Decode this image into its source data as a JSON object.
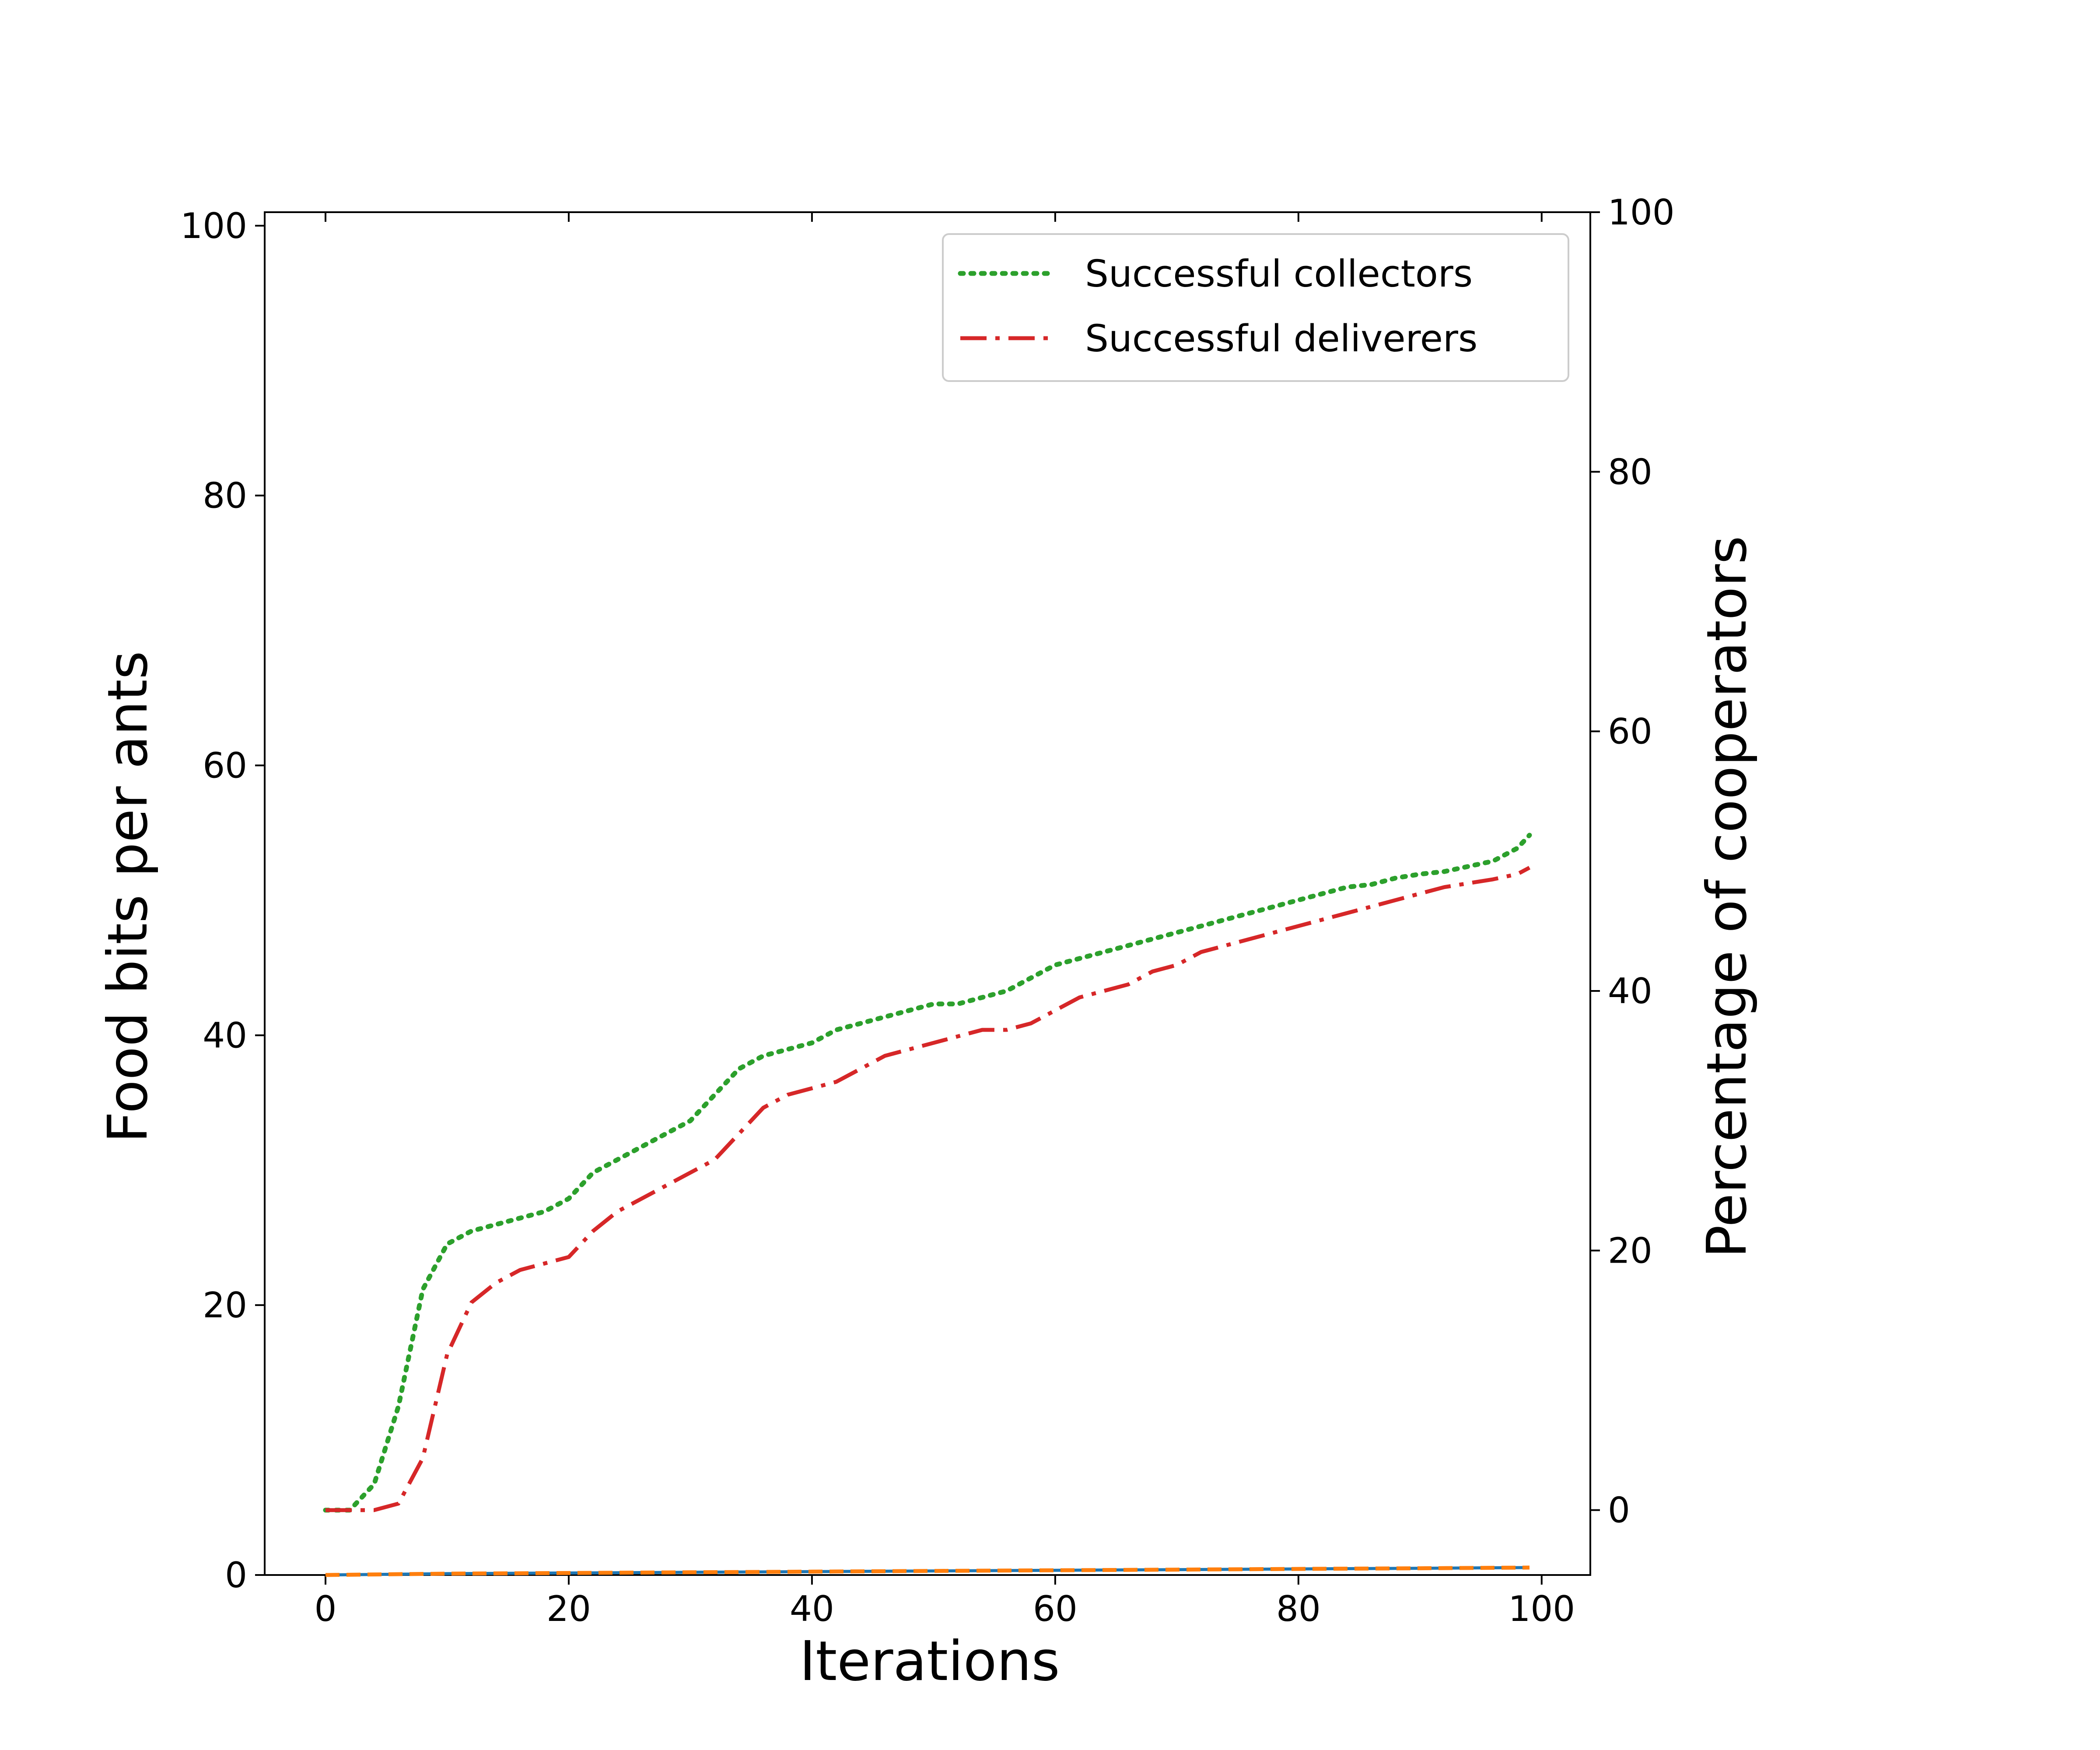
{
  "chart_data": {
    "type": "line",
    "xlabel": "Iterations",
    "ylabel": "Food bits per ants",
    "y2label": "Percentage of cooperators",
    "xlim": [
      -5,
      104
    ],
    "ylim": [
      0,
      101
    ],
    "y2lim": [
      -5,
      100
    ],
    "xticks": [
      0,
      20,
      40,
      60,
      80,
      100
    ],
    "yticks": [
      0,
      20,
      40,
      60,
      80,
      100
    ],
    "y2ticks": [
      0,
      20,
      40,
      60,
      80,
      100
    ],
    "grid": false,
    "legend_position": "top-right",
    "series": [
      {
        "name": "Successful collectors",
        "axis": "right",
        "style": "dotted",
        "color": "#2ca02c",
        "x": [
          0,
          2,
          4,
          6,
          8,
          10,
          12,
          14,
          16,
          18,
          20,
          22,
          24,
          26,
          28,
          30,
          32,
          34,
          36,
          38,
          40,
          42,
          44,
          46,
          48,
          50,
          52,
          54,
          56,
          58,
          60,
          62,
          64,
          66,
          68,
          70,
          72,
          74,
          76,
          78,
          80,
          82,
          84,
          86,
          88,
          90,
          92,
          94,
          96,
          98,
          99
        ],
        "y": [
          0,
          0,
          2,
          8,
          17,
          20.5,
          21.5,
          22,
          22.5,
          23,
          24,
          26,
          27,
          28,
          29,
          30,
          32,
          34,
          35,
          35.5,
          36,
          37,
          37.5,
          38,
          38.5,
          39,
          39,
          39.5,
          40,
          41,
          42,
          42.5,
          43,
          43.5,
          44,
          44.5,
          45,
          45.5,
          46,
          46.5,
          47,
          47.5,
          48,
          48.2,
          48.7,
          49,
          49.2,
          49.6,
          50,
          51,
          52
        ]
      },
      {
        "name": "Successful deliverers",
        "axis": "right",
        "style": "dashdot",
        "color": "#d62728",
        "x": [
          0,
          2,
          4,
          6,
          8,
          10,
          12,
          14,
          16,
          18,
          20,
          22,
          24,
          26,
          28,
          30,
          32,
          34,
          36,
          38,
          40,
          42,
          44,
          46,
          48,
          50,
          52,
          54,
          56,
          58,
          60,
          62,
          64,
          66,
          68,
          70,
          72,
          74,
          76,
          78,
          80,
          82,
          84,
          86,
          88,
          90,
          92,
          94,
          96,
          98,
          99
        ],
        "y": [
          0,
          0,
          0,
          0.5,
          4,
          12,
          16,
          17.5,
          18.5,
          19,
          19.5,
          21.5,
          23,
          24,
          25,
          26,
          27,
          29,
          31,
          32,
          32.5,
          33,
          34,
          35,
          35.5,
          36,
          36.5,
          37,
          37,
          37.5,
          38.5,
          39.5,
          40,
          40.5,
          41.5,
          42,
          43,
          43.5,
          44,
          44.5,
          45,
          45.5,
          46,
          46.5,
          47,
          47.5,
          48,
          48.3,
          48.6,
          49,
          49.5
        ]
      },
      {
        "axis": "left",
        "style": "solid",
        "color": "#1f77b4",
        "x": [
          0,
          10,
          20,
          30,
          40,
          50,
          60,
          70,
          80,
          90,
          99
        ],
        "y": [
          0,
          0.1,
          0.15,
          0.2,
          0.25,
          0.3,
          0.35,
          0.4,
          0.45,
          0.5,
          0.55
        ]
      },
      {
        "axis": "left",
        "style": "dashed",
        "color": "#ff7f0e",
        "x": [
          0,
          10,
          20,
          30,
          40,
          50,
          60,
          70,
          80,
          90,
          99
        ],
        "y": [
          0,
          0.1,
          0.15,
          0.2,
          0.25,
          0.3,
          0.35,
          0.4,
          0.45,
          0.5,
          0.55
        ]
      }
    ]
  }
}
